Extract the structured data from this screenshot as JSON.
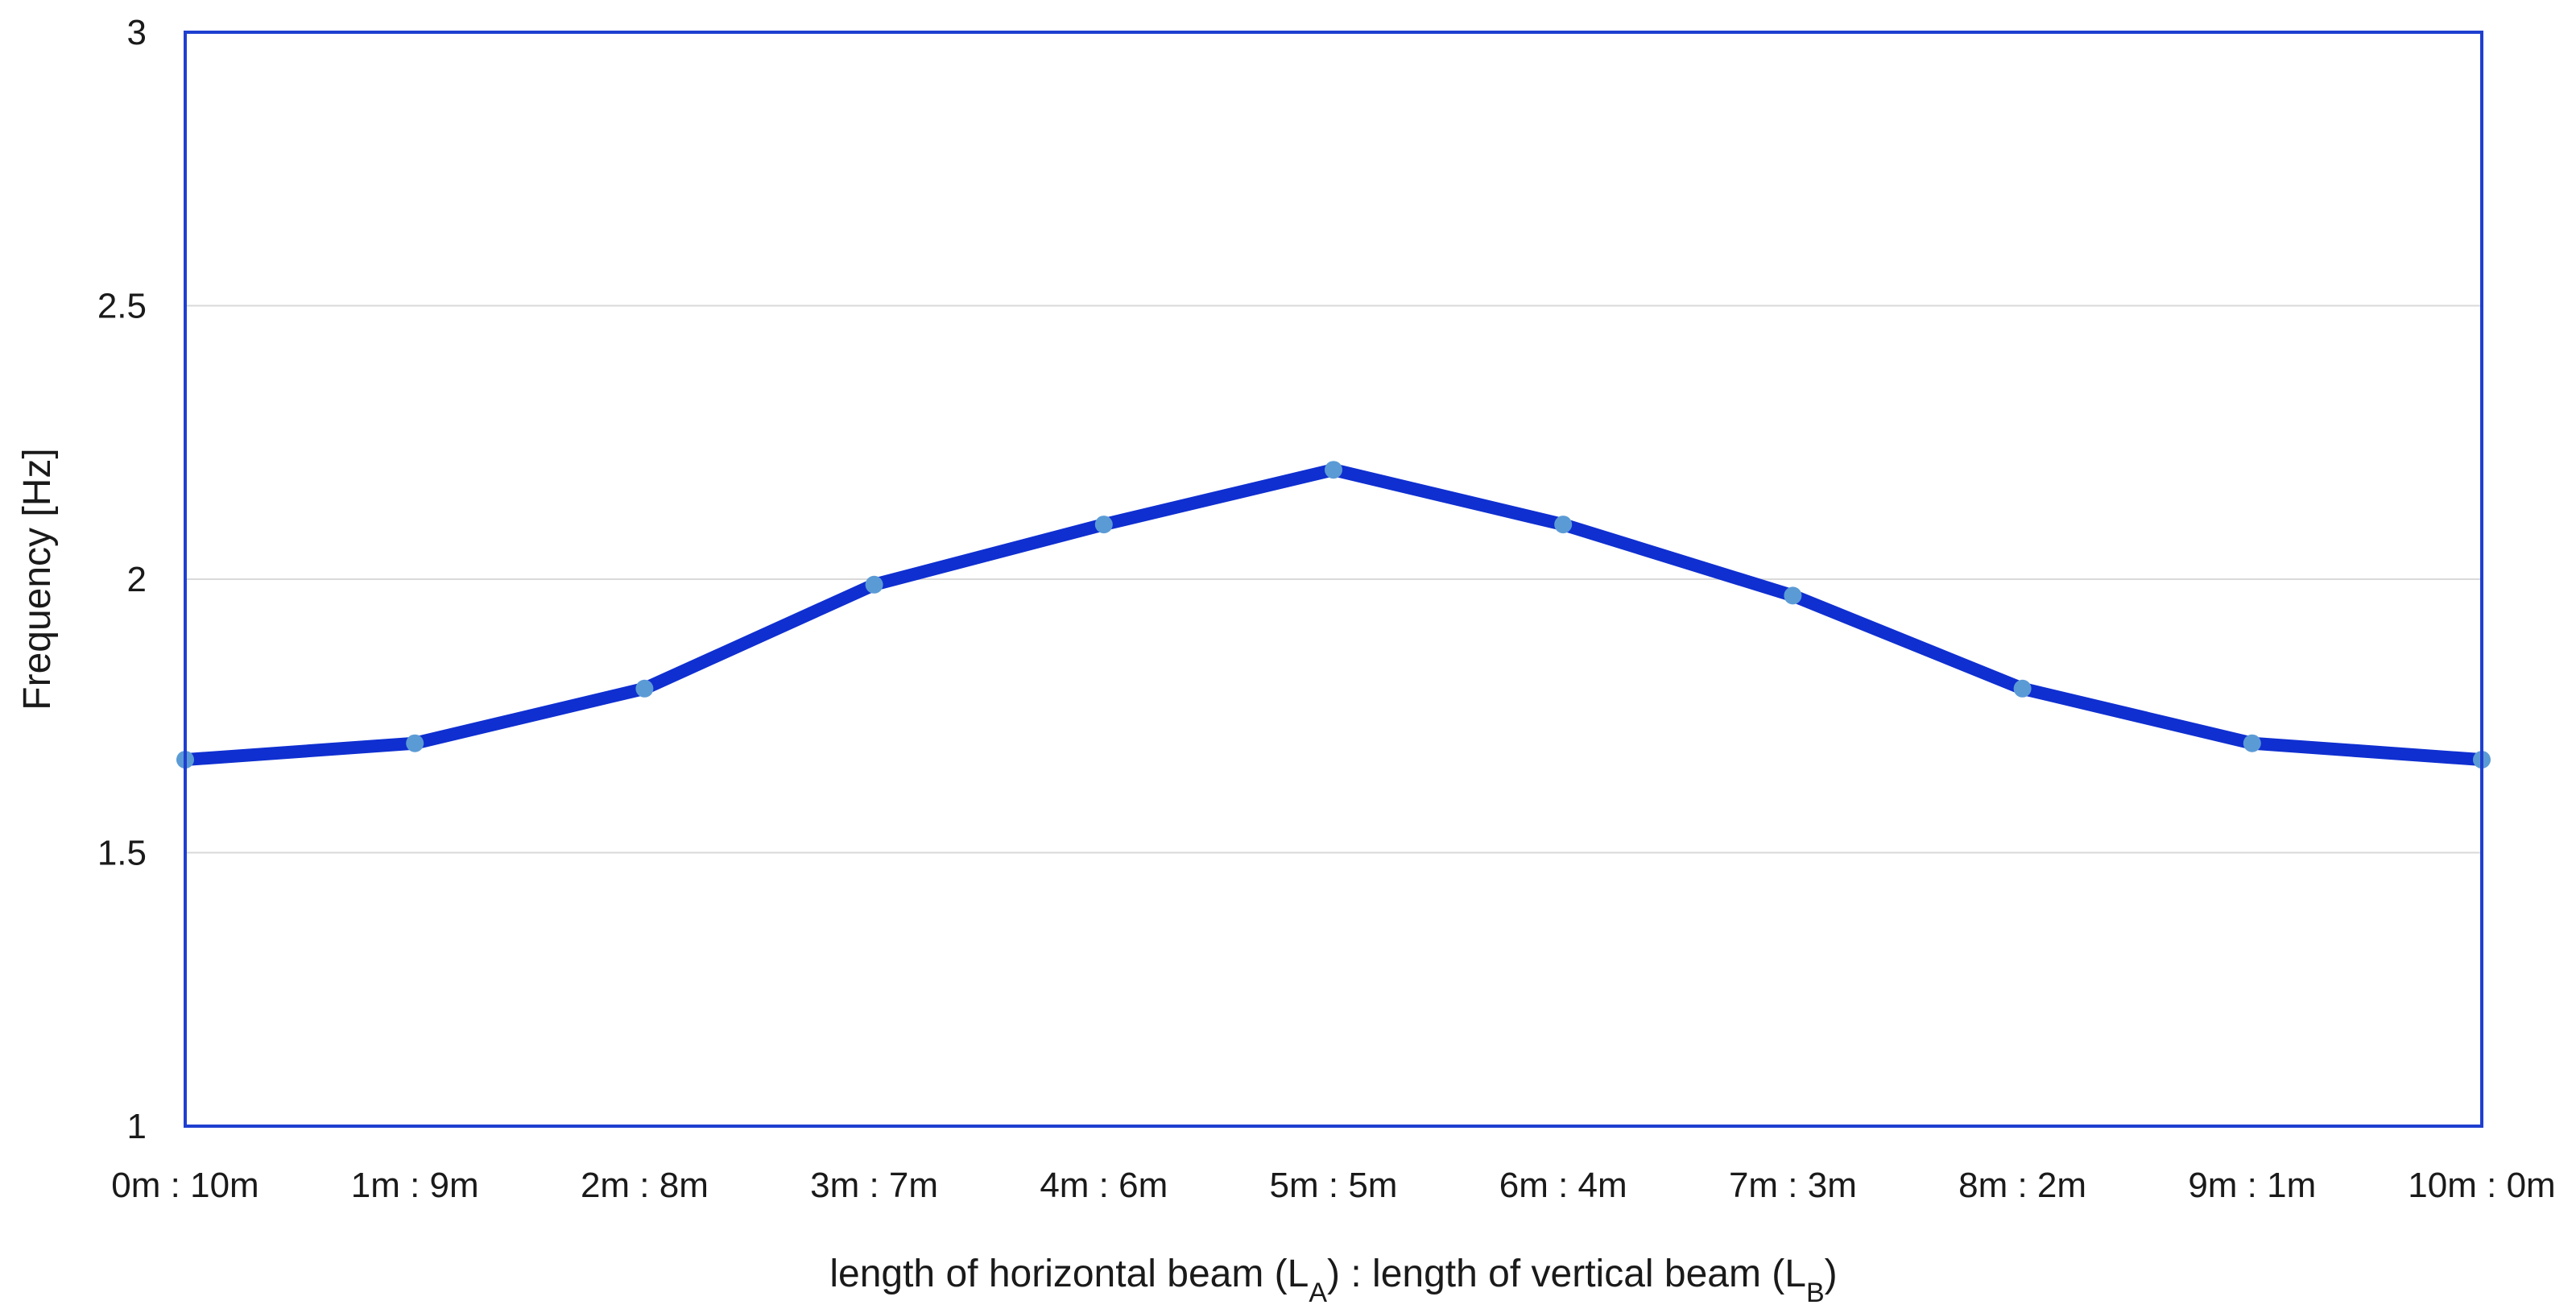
{
  "chart_data": {
    "type": "line",
    "title": "",
    "xlabel": "length of horizontal beam (L_A) : length of vertical beam (L_B)",
    "xlabel_parts": {
      "part1": "length of horizontal beam (L",
      "sub1": "A",
      "part2": ") : length of vertical beam (L",
      "sub2": "B",
      "part3": ")"
    },
    "ylabel": "Frequency [Hz]",
    "ylim": [
      1,
      3
    ],
    "yticks": [
      1,
      1.5,
      2,
      2.5,
      3
    ],
    "ytick_labels": [
      "1",
      "1.5",
      "2",
      "2.5",
      "3"
    ],
    "grid": true,
    "legend": "none",
    "categories": [
      "0m : 10m",
      "1m : 9m",
      "2m : 8m",
      "3m : 7m",
      "4m : 6m",
      "5m : 5m",
      "6m : 4m",
      "7m : 3m",
      "8m : 2m",
      "9m : 1m",
      "10m : 0m"
    ],
    "series": [
      {
        "values": [
          1.67,
          1.7,
          1.8,
          1.99,
          2.1,
          2.2,
          2.1,
          1.97,
          1.8,
          1.7,
          1.67
        ],
        "line_color": "#0f2fd0",
        "marker_color": "#5b9bd5"
      }
    ],
    "frame_color": "#1f3fd0"
  }
}
